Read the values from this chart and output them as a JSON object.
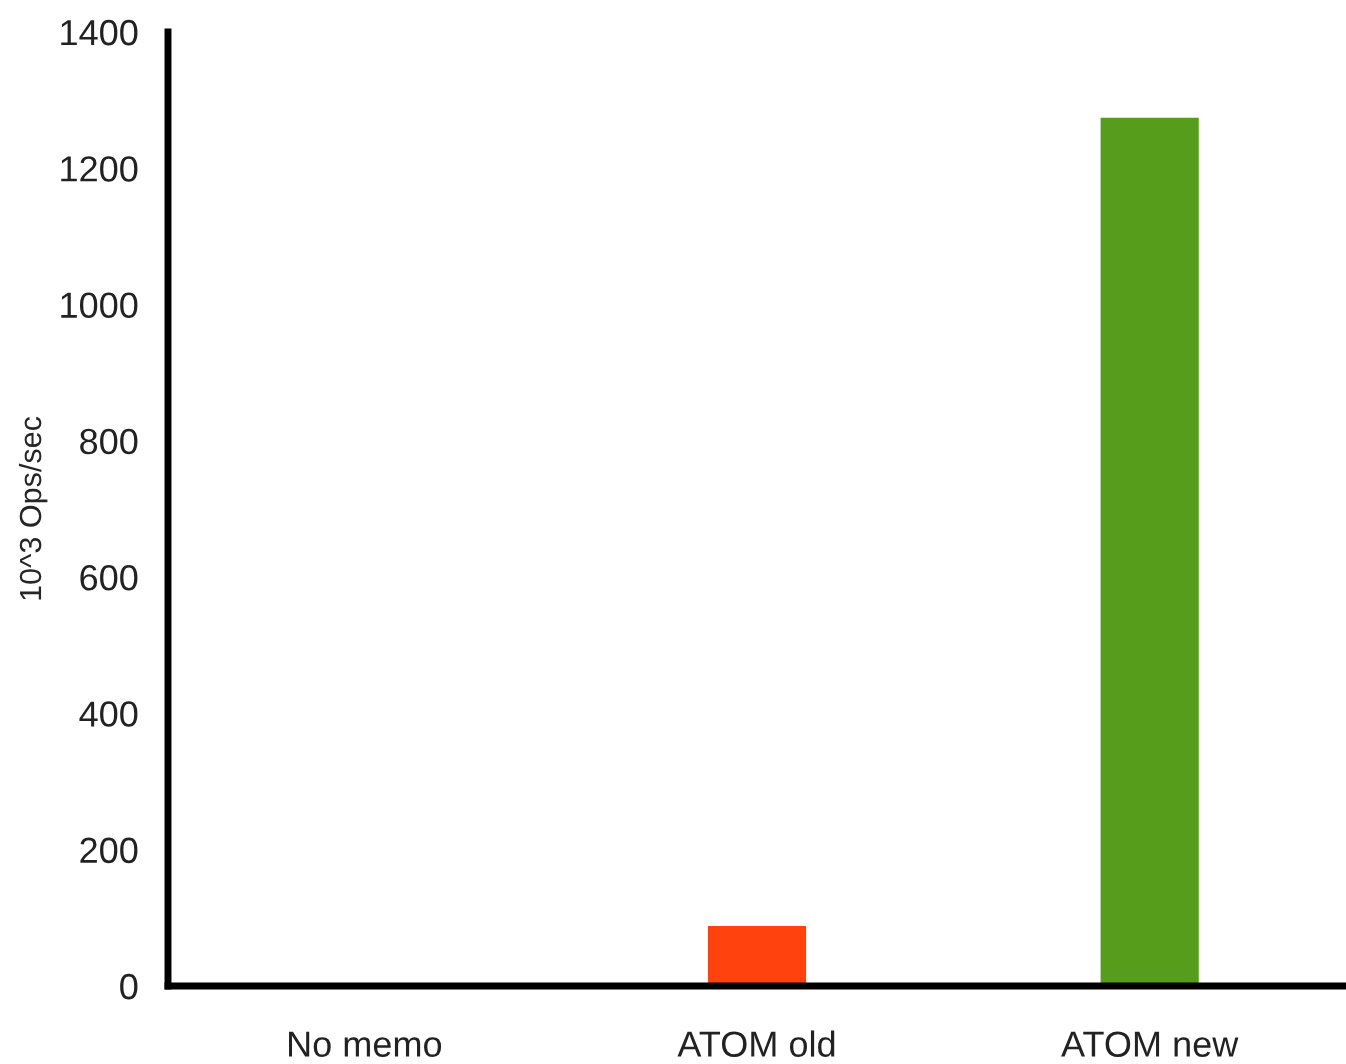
{
  "chart_data": {
    "type": "bar",
    "ylabel": "10^3 Ops/sec",
    "categories": [
      "No memo",
      "ATOM old",
      "ATOM new"
    ],
    "values": [
      3,
      88,
      1274
    ],
    "colors": [
      "#004586",
      "#ff420e",
      "#579d1c"
    ],
    "ylim": [
      0,
      1400
    ],
    "yticks": [
      0,
      200,
      400,
      600,
      800,
      1000,
      1200,
      1400
    ],
    "grid": false,
    "legend": false
  }
}
